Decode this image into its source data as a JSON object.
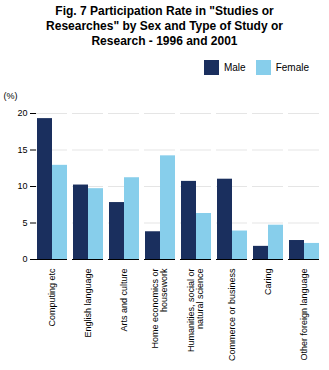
{
  "chart_data": {
    "type": "bar",
    "title": "Fig. 7 Participation Rate in \"Studies or\nResearches\" by Sex and Type of Study or\nResearch - 1996 and 2001",
    "ylabel": "(%)",
    "categories": [
      "Computing etc",
      "English language",
      "Arts and culture",
      "Home economics or\nhousework",
      "Humanities, social or\nnatural science",
      "Commerce or business",
      "Caring",
      "Other foreign language"
    ],
    "series": [
      {
        "name": "Male",
        "color": "#1a2f5e",
        "values": [
          19.3,
          10.2,
          7.8,
          3.8,
          10.7,
          11.0,
          1.8,
          2.6
        ]
      },
      {
        "name": "Female",
        "color": "#87CEEB",
        "values": [
          12.9,
          9.7,
          11.2,
          14.2,
          6.3,
          3.9,
          4.7,
          2.2
        ]
      }
    ],
    "ylim": [
      0,
      20
    ],
    "yticks": [
      0,
      5,
      10,
      15,
      20
    ],
    "grid": true,
    "legend": "upper right"
  }
}
